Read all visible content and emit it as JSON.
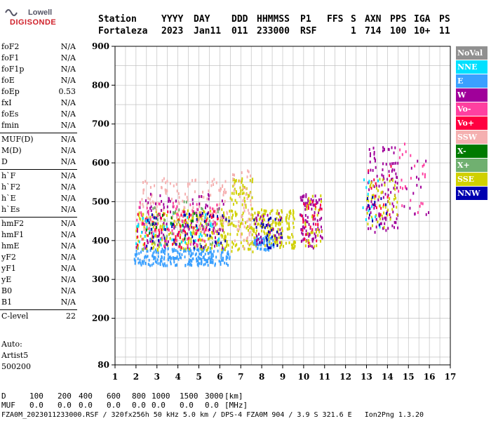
{
  "logo": {
    "line1": "Lowell",
    "line2": "DIGISONDE"
  },
  "header": {
    "labels": [
      "Station",
      "YYYY",
      "DAY",
      "DDD",
      "HHMMSS",
      "P1",
      "FFS",
      "S",
      "AXN",
      "PPS",
      "IGA",
      "PS"
    ],
    "values": [
      "Fortaleza",
      "2023",
      "Jan11",
      "011",
      "233000",
      "RSF",
      "",
      "1",
      "714",
      "100",
      "10+",
      "11"
    ]
  },
  "params_groups": [
    [
      {
        "label": "foF2",
        "value": "N/A"
      },
      {
        "label": "foF1",
        "value": "N/A"
      },
      {
        "label": "foF1p",
        "value": "N/A"
      },
      {
        "label": "foE",
        "value": "N/A"
      },
      {
        "label": "foEp",
        "value": "0.53"
      },
      {
        "label": "fxI",
        "value": "N/A"
      },
      {
        "label": "foEs",
        "value": "N/A"
      },
      {
        "label": "fmin",
        "value": "N/A"
      }
    ],
    [
      {
        "label": "MUF(D)",
        "value": "N/A"
      },
      {
        "label": "M(D)",
        "value": "N/A"
      },
      {
        "label": "D",
        "value": "N/A"
      }
    ],
    [
      {
        "label": "h`F",
        "value": "N/A"
      },
      {
        "label": "h`F2",
        "value": "N/A"
      },
      {
        "label": "h`E",
        "value": "N/A"
      },
      {
        "label": "h`Es",
        "value": "N/A"
      }
    ],
    [
      {
        "label": "hmF2",
        "value": "N/A"
      },
      {
        "label": "hmF1",
        "value": "N/A"
      },
      {
        "label": "hmE",
        "value": "N/A"
      },
      {
        "label": "yF2",
        "value": "N/A"
      },
      {
        "label": "yF1",
        "value": "N/A"
      },
      {
        "label": "yE",
        "value": "N/A"
      },
      {
        "label": "B0",
        "value": "N/A"
      },
      {
        "label": "B1",
        "value": "N/A"
      }
    ],
    [
      {
        "label": "C-level",
        "value": "22"
      }
    ]
  ],
  "autoscaling": [
    "Auto:",
    "Artist5",
    "500200"
  ],
  "legend": [
    {
      "label": "NoVal",
      "color": "#909090"
    },
    {
      "label": "NNE",
      "color": "#00e0ff"
    },
    {
      "label": "E",
      "color": "#3aa0ff"
    },
    {
      "label": "W",
      "color": "#a0009a"
    },
    {
      "label": "Vo-",
      "color": "#ff40a0"
    },
    {
      "label": "Vo+",
      "color": "#ff0040"
    },
    {
      "label": "SSW",
      "color": "#f5b0b0"
    },
    {
      "label": "X-",
      "color": "#007a00"
    },
    {
      "label": "X+",
      "color": "#70b070"
    },
    {
      "label": "SSE",
      "color": "#d0d000"
    },
    {
      "label": "NNW",
      "color": "#0000b0"
    }
  ],
  "chart_data": {
    "type": "scatter",
    "xlabel": "",
    "ylabel": "",
    "xlim": [
      1,
      17
    ],
    "ylim": [
      80,
      900
    ],
    "x_ticks": [
      1,
      2,
      3,
      4,
      5,
      6,
      7,
      8,
      9,
      10,
      11,
      12,
      13,
      14,
      15,
      16,
      17
    ],
    "y_ticks": [
      80,
      200,
      300,
      400,
      500,
      600,
      700,
      800,
      900
    ],
    "grid": true,
    "clusters": [
      {
        "series": "E",
        "x": [
          1.9,
          6.5
        ],
        "y": [
          335,
          380
        ],
        "density": 260
      },
      {
        "series": "SSE",
        "x": [
          2.0,
          6.6
        ],
        "y": [
          375,
          480
        ],
        "density": 260
      },
      {
        "series": "SSW",
        "x": [
          2.2,
          6.4
        ],
        "y": [
          420,
          560
        ],
        "density": 180
      },
      {
        "series": "W",
        "x": [
          2.0,
          6.2
        ],
        "y": [
          380,
          520
        ],
        "density": 110
      },
      {
        "series": "Vo-",
        "x": [
          2.0,
          6.0
        ],
        "y": [
          385,
          500
        ],
        "density": 80
      },
      {
        "series": "Vo+",
        "x": [
          2.0,
          6.0
        ],
        "y": [
          380,
          480
        ],
        "density": 60
      },
      {
        "series": "NNE",
        "x": [
          2.0,
          6.0
        ],
        "y": [
          380,
          470
        ],
        "density": 50
      },
      {
        "series": "X+",
        "x": [
          2.5,
          6.0
        ],
        "y": [
          380,
          500
        ],
        "density": 40
      },
      {
        "series": "X-",
        "x": [
          2.5,
          5.5
        ],
        "y": [
          390,
          470
        ],
        "density": 15
      },
      {
        "series": "NNW",
        "x": [
          2.5,
          6.5
        ],
        "y": [
          380,
          470
        ],
        "density": 50
      },
      {
        "series": "SSE",
        "x": [
          6.5,
          7.6
        ],
        "y": [
          370,
          560
        ],
        "density": 110
      },
      {
        "series": "SSW",
        "x": [
          6.6,
          7.5
        ],
        "y": [
          380,
          600
        ],
        "density": 50
      },
      {
        "series": "SSE",
        "x": [
          7.6,
          9.6
        ],
        "y": [
          380,
          480
        ],
        "density": 160
      },
      {
        "series": "E",
        "x": [
          7.6,
          8.6
        ],
        "y": [
          375,
          410
        ],
        "density": 50
      },
      {
        "series": "NNW",
        "x": [
          7.6,
          9.0
        ],
        "y": [
          380,
          460
        ],
        "density": 35
      },
      {
        "series": "W",
        "x": [
          7.7,
          9.0
        ],
        "y": [
          390,
          470
        ],
        "density": 30
      },
      {
        "series": "W",
        "x": [
          9.8,
          10.9
        ],
        "y": [
          380,
          520
        ],
        "density": 90
      },
      {
        "series": "Vo+",
        "x": [
          9.9,
          10.9
        ],
        "y": [
          390,
          500
        ],
        "density": 30
      },
      {
        "series": "SSE",
        "x": [
          10.0,
          10.9
        ],
        "y": [
          380,
          520
        ],
        "density": 30
      },
      {
        "series": "W",
        "x": [
          13.0,
          14.5
        ],
        "y": [
          420,
          640
        ],
        "density": 110
      },
      {
        "series": "SSE",
        "x": [
          13.0,
          14.5
        ],
        "y": [
          430,
          560
        ],
        "density": 50
      },
      {
        "series": "NNE",
        "x": [
          12.8,
          13.7
        ],
        "y": [
          430,
          560
        ],
        "density": 14
      },
      {
        "series": "Vo+",
        "x": [
          13.0,
          14.2
        ],
        "y": [
          460,
          600
        ],
        "density": 15
      },
      {
        "series": "NNW",
        "x": [
          13.0,
          14.0
        ],
        "y": [
          440,
          520
        ],
        "density": 12
      },
      {
        "series": "Vo-",
        "x": [
          14.5,
          16.1
        ],
        "y": [
          450,
          660
        ],
        "density": 25
      },
      {
        "series": "W",
        "x": [
          14.6,
          16.0
        ],
        "y": [
          450,
          620
        ],
        "density": 15
      }
    ]
  },
  "bottom": {
    "d_label": "D",
    "d_values": [
      "100",
      "200",
      "400",
      "600",
      "800",
      "1000",
      "1500",
      "3000",
      "[km]"
    ],
    "muf_label": "MUF",
    "muf_values": [
      "0.0",
      "0.0",
      "0.0",
      "0.0",
      "0.0",
      "0.0",
      "0.0",
      "0.0",
      "[MHz]"
    ],
    "footer": "FZA0M_2023011233000.RSF / 320fx256h 50 kHz 5.0 km / DPS-4 FZA0M 904 / 3.9 S 321.6 E   Ion2Png 1.3.20"
  }
}
